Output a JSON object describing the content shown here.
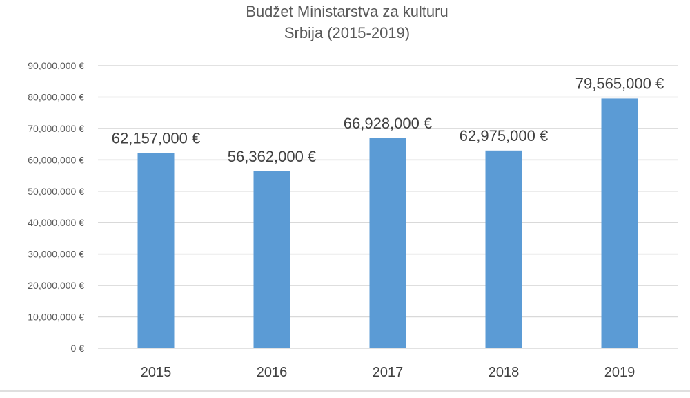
{
  "chart_data": {
    "type": "bar",
    "title": [
      "Budžet Ministarstva za kulturu",
      "Srbija (2015-2019)"
    ],
    "categories": [
      "2015",
      "2016",
      "2017",
      "2018",
      "2019"
    ],
    "values": [
      62157000,
      56362000,
      66928000,
      62975000,
      79565000
    ],
    "data_labels": [
      "62,157,000 €",
      "56,362,000 €",
      "66,928,000 €",
      "62,975,000 €",
      "79,565,000 €"
    ],
    "ylim": [
      0,
      90000000
    ],
    "yticks": [
      0,
      10000000,
      20000000,
      30000000,
      40000000,
      50000000,
      60000000,
      70000000,
      80000000,
      90000000
    ],
    "ytick_labels": [
      "0 €",
      "10,000,000 €",
      "20,000,000 €",
      "30,000,000 €",
      "40,000,000 €",
      "50,000,000 €",
      "60,000,000 €",
      "70,000,000 €",
      "80,000,000 €",
      "90,000,000 €"
    ],
    "xlabel": "",
    "ylabel": "",
    "grid": true,
    "legend": "none",
    "bar_color": "#5b9bd5"
  }
}
